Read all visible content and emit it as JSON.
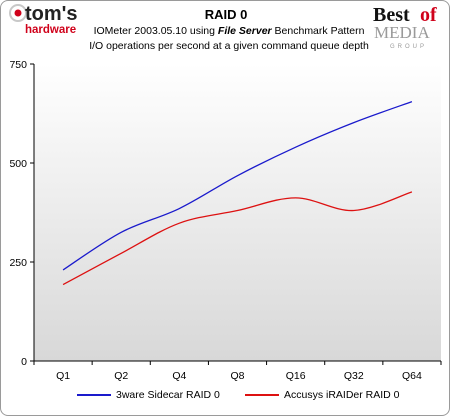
{
  "header": {
    "title": "RAID 0",
    "subtitle_pre": "IOMeter 2003.05.10 using ",
    "subtitle_bold": "File Server",
    "subtitle_post": " Benchmark Pattern",
    "subtitle_line2": "I/O operations per second at a given command queue depth"
  },
  "logos": {
    "left_top": "tom's",
    "left_bottom": "hardware",
    "right_top_a": "Best",
    "right_top_b": "of",
    "right_mid": "MEDIA",
    "right_bottom": "GROUP"
  },
  "colors": {
    "series1": "#1a1acc",
    "series2": "#dd1111",
    "plot_bg_top": "#ffffff",
    "plot_bg_bottom": "#d8d8d8",
    "logo_red": "#d0021b"
  },
  "chart_data": {
    "type": "line",
    "title": "RAID 0",
    "xlabel": "",
    "ylabel": "",
    "categories": [
      "Q1",
      "Q2",
      "Q4",
      "Q8",
      "Q16",
      "Q32",
      "Q64"
    ],
    "ylim": [
      0,
      750
    ],
    "yticks": [
      0,
      250,
      500,
      750
    ],
    "grid": false,
    "legend_position": "bottom",
    "series": [
      {
        "name": "3ware Sidecar RAID 0",
        "color": "#1a1acc",
        "values": [
          230,
          325,
          385,
          468,
          540,
          602,
          655
        ]
      },
      {
        "name": "Accusys iRAIDer RAID 0",
        "color": "#dd1111",
        "values": [
          193,
          272,
          348,
          380,
          412,
          380,
          427
        ]
      }
    ]
  }
}
